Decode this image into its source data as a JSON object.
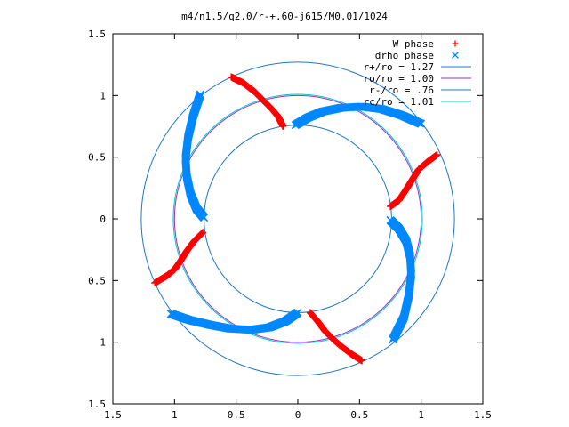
{
  "chart_data": {
    "type": "scatter",
    "title": "m4/n1.5/q2.0/r-+.60-j615/M0.01/1024",
    "xlabel": "",
    "ylabel": "",
    "xlim": [
      -1.5,
      1.5
    ],
    "ylim": [
      -1.5,
      1.5
    ],
    "x_ticks": [
      "1.5",
      "1",
      "0.5",
      "0",
      "0.5",
      "1",
      "1.5"
    ],
    "y_ticks": [
      "1.5",
      "1",
      "0.5",
      "0",
      "0.5",
      "1",
      "1.5"
    ],
    "grid": false,
    "legend_position": "top-right",
    "legend": [
      {
        "label": "W phase",
        "marker": "+",
        "color": "#ff0000"
      },
      {
        "label": "drho phase",
        "marker": "x",
        "color": "#0088ff"
      },
      {
        "label": "r+/ro = 1.27",
        "line": true,
        "color": "#1f77c8"
      },
      {
        "label": "ro/ro = 1.00",
        "line": true,
        "color": "#9b30c8"
      },
      {
        "label": "r-/ro = .76",
        "line": true,
        "color": "#1f77c8"
      },
      {
        "label": "rc/ro = 1.01",
        "line": true,
        "color": "#00c8c8"
      }
    ],
    "circles": [
      {
        "name": "r+/ro = 1.27",
        "r": 1.27,
        "color": "#1f77c8"
      },
      {
        "name": "ro/ro = 1.00",
        "r": 1.0,
        "color": "#9b30c8"
      },
      {
        "name": "r-/ro = .76",
        "r": 0.76,
        "color": "#1f77c8"
      },
      {
        "name": "rc/ro = 1.01",
        "r": 1.01,
        "color": "#00c8c8"
      }
    ],
    "series": [
      {
        "name": "W phase",
        "marker": "+",
        "color": "#ff0000",
        "arms": [
          [
            [
              -0.54,
              1.15
            ],
            [
              -0.44,
              1.1
            ],
            [
              -0.35,
              1.03
            ],
            [
              -0.28,
              0.96
            ],
            [
              -0.21,
              0.89
            ],
            [
              -0.16,
              0.83
            ],
            [
              -0.12,
              0.75
            ]
          ],
          [
            [
              0.75,
              0.1
            ],
            [
              0.82,
              0.15
            ],
            [
              0.88,
              0.24
            ],
            [
              0.93,
              0.32
            ],
            [
              0.98,
              0.4
            ],
            [
              1.05,
              0.46
            ],
            [
              1.13,
              0.52
            ]
          ],
          [
            [
              0.1,
              -0.76
            ],
            [
              0.16,
              -0.83
            ],
            [
              0.22,
              -0.91
            ],
            [
              0.29,
              -0.98
            ],
            [
              0.36,
              -1.04
            ],
            [
              0.44,
              -1.1
            ],
            [
              0.52,
              -1.15
            ]
          ],
          [
            [
              -0.77,
              -0.11
            ],
            [
              -0.84,
              -0.18
            ],
            [
              -0.9,
              -0.26
            ],
            [
              -0.95,
              -0.34
            ],
            [
              -1.0,
              -0.41
            ],
            [
              -1.06,
              -0.46
            ],
            [
              -1.16,
              -0.52
            ]
          ]
        ]
      },
      {
        "name": "drho phase",
        "marker": "x",
        "color": "#0088ff",
        "arms": [
          [
            [
              -0.02,
              0.76
            ],
            [
              0.08,
              0.82
            ],
            [
              0.2,
              0.87
            ],
            [
              0.35,
              0.9
            ],
            [
              0.52,
              0.91
            ],
            [
              0.68,
              0.89
            ],
            [
              0.84,
              0.84
            ],
            [
              1.0,
              0.77
            ]
          ],
          [
            [
              0.75,
              -0.01
            ],
            [
              0.82,
              -0.08
            ],
            [
              0.88,
              -0.18
            ],
            [
              0.91,
              -0.3
            ],
            [
              0.92,
              -0.45
            ],
            [
              0.9,
              -0.62
            ],
            [
              0.86,
              -0.8
            ],
            [
              0.77,
              -0.98
            ]
          ],
          [
            [
              0.0,
              -0.76
            ],
            [
              -0.1,
              -0.83
            ],
            [
              -0.23,
              -0.88
            ],
            [
              -0.38,
              -0.9
            ],
            [
              -0.55,
              -0.89
            ],
            [
              -0.71,
              -0.86
            ],
            [
              -0.88,
              -0.82
            ],
            [
              -1.03,
              -0.77
            ]
          ],
          [
            [
              -0.76,
              0.01
            ],
            [
              -0.82,
              0.08
            ],
            [
              -0.87,
              0.2
            ],
            [
              -0.9,
              0.34
            ],
            [
              -0.91,
              0.49
            ],
            [
              -0.89,
              0.66
            ],
            [
              -0.85,
              0.83
            ],
            [
              -0.79,
              1.01
            ]
          ]
        ]
      }
    ]
  }
}
